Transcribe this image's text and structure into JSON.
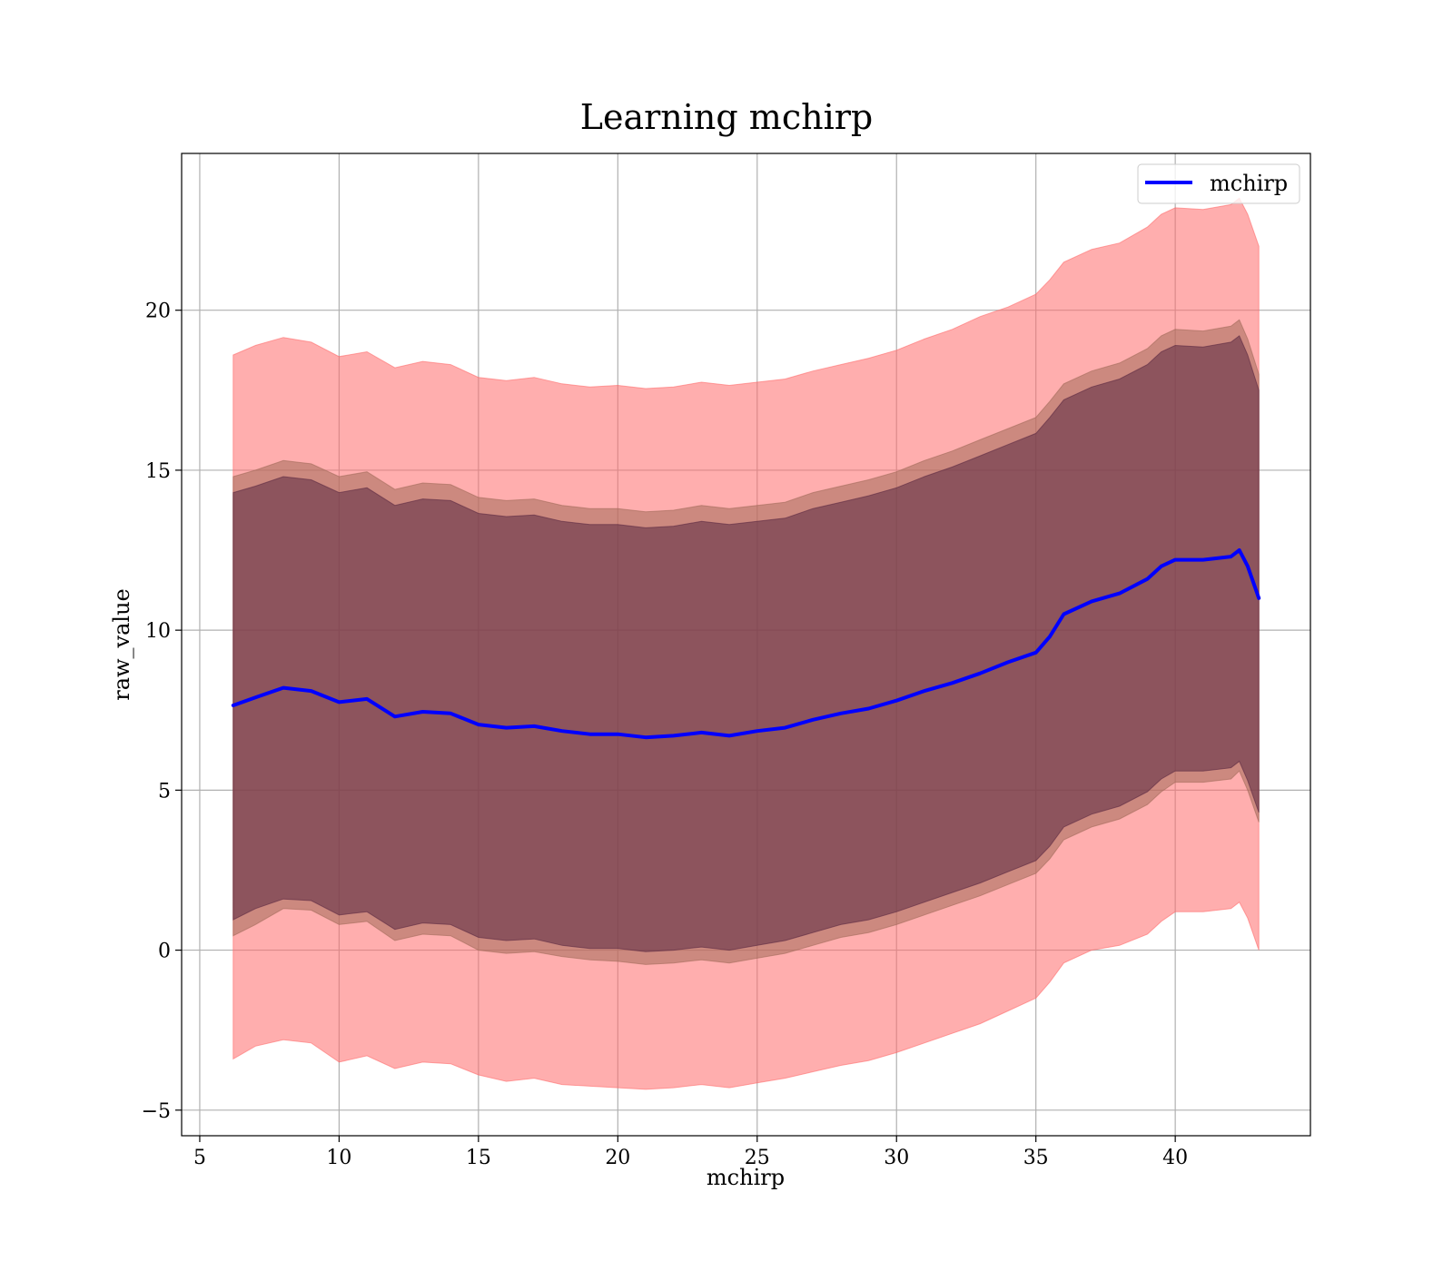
{
  "chart_data": {
    "type": "area",
    "title": "Learning mchirp",
    "xlabel": "mchirp",
    "ylabel": "raw_value",
    "xlim": [
      4.35,
      44.85
    ],
    "ylim": [
      -5.8,
      24.9
    ],
    "xticks": [
      5,
      10,
      15,
      20,
      25,
      30,
      35,
      40
    ],
    "yticks": [
      -5,
      0,
      5,
      10,
      15,
      20
    ],
    "ytick_labels": [
      "−5",
      "0",
      "5",
      "10",
      "15",
      "20"
    ],
    "grid": true,
    "legend": {
      "position": "top-right",
      "entries": [
        "mchirp"
      ]
    },
    "x": [
      6.2,
      7,
      8,
      9,
      10,
      11,
      12,
      13,
      14,
      15,
      16,
      17,
      18,
      19,
      20,
      21,
      22,
      23,
      24,
      25,
      26,
      27,
      28,
      29,
      30,
      31,
      32,
      33,
      34,
      35,
      35.5,
      36,
      37,
      38,
      39,
      39.5,
      40,
      41,
      42,
      42.3,
      42.6,
      43
    ],
    "series": [
      {
        "name": "mchirp",
        "kind": "line",
        "color": "#0000ff",
        "values": [
          7.65,
          7.9,
          8.2,
          8.1,
          7.75,
          7.85,
          7.3,
          7.45,
          7.4,
          7.05,
          6.95,
          7.0,
          6.85,
          6.75,
          6.75,
          6.65,
          6.7,
          6.8,
          6.7,
          6.85,
          6.95,
          7.2,
          7.4,
          7.55,
          7.8,
          8.1,
          8.35,
          8.65,
          9.0,
          9.3,
          9.8,
          10.5,
          10.9,
          11.15,
          11.6,
          12.0,
          12.2,
          12.2,
          12.3,
          12.5,
          12.0,
          11.0
        ]
      },
      {
        "kind": "band",
        "color": "#ff6b6b",
        "lower": [
          -3.4,
          -3.0,
          -2.8,
          -2.9,
          -3.5,
          -3.3,
          -3.7,
          -3.5,
          -3.55,
          -3.9,
          -4.1,
          -4.0,
          -4.2,
          -4.25,
          -4.3,
          -4.35,
          -4.3,
          -4.2,
          -4.3,
          -4.15,
          -4.0,
          -3.8,
          -3.6,
          -3.45,
          -3.2,
          -2.9,
          -2.6,
          -2.3,
          -1.9,
          -1.5,
          -1.0,
          -0.4,
          0.0,
          0.15,
          0.5,
          0.9,
          1.2,
          1.2,
          1.3,
          1.5,
          1.0,
          0.0
        ],
        "upper": [
          18.6,
          18.9,
          19.15,
          19.0,
          18.55,
          18.7,
          18.2,
          18.4,
          18.3,
          17.9,
          17.8,
          17.9,
          17.7,
          17.6,
          17.65,
          17.55,
          17.6,
          17.75,
          17.65,
          17.75,
          17.85,
          18.1,
          18.3,
          18.5,
          18.75,
          19.1,
          19.4,
          19.8,
          20.1,
          20.5,
          20.95,
          21.5,
          21.9,
          22.1,
          22.6,
          23.0,
          23.2,
          23.15,
          23.3,
          23.5,
          23.0,
          22.0
        ]
      },
      {
        "kind": "band",
        "color": "#a26b5a",
        "lower": [
          0.45,
          0.8,
          1.3,
          1.25,
          0.8,
          0.9,
          0.3,
          0.5,
          0.45,
          0.0,
          -0.1,
          -0.05,
          -0.2,
          -0.3,
          -0.35,
          -0.45,
          -0.4,
          -0.3,
          -0.4,
          -0.25,
          -0.1,
          0.15,
          0.4,
          0.55,
          0.8,
          1.1,
          1.4,
          1.7,
          2.05,
          2.4,
          2.85,
          3.45,
          3.85,
          4.1,
          4.55,
          4.95,
          5.25,
          5.25,
          5.35,
          5.6,
          5.0,
          4.0
        ],
        "upper": [
          14.8,
          15.0,
          15.3,
          15.2,
          14.8,
          14.95,
          14.4,
          14.6,
          14.55,
          14.15,
          14.05,
          14.1,
          13.9,
          13.8,
          13.8,
          13.7,
          13.75,
          13.9,
          13.8,
          13.9,
          14.0,
          14.3,
          14.5,
          14.7,
          14.95,
          15.3,
          15.6,
          15.95,
          16.3,
          16.65,
          17.15,
          17.7,
          18.1,
          18.35,
          18.8,
          19.2,
          19.4,
          19.35,
          19.5,
          19.7,
          19.1,
          18.0
        ]
      },
      {
        "kind": "band",
        "color": "#5a2841",
        "lower": [
          0.95,
          1.3,
          1.6,
          1.55,
          1.1,
          1.2,
          0.65,
          0.85,
          0.8,
          0.4,
          0.3,
          0.35,
          0.15,
          0.05,
          0.05,
          -0.05,
          0.0,
          0.1,
          0.0,
          0.15,
          0.3,
          0.55,
          0.8,
          0.95,
          1.2,
          1.5,
          1.8,
          2.1,
          2.45,
          2.8,
          3.25,
          3.85,
          4.25,
          4.5,
          4.95,
          5.35,
          5.6,
          5.6,
          5.7,
          5.9,
          5.3,
          4.3
        ],
        "upper": [
          14.3,
          14.5,
          14.8,
          14.7,
          14.3,
          14.45,
          13.9,
          14.1,
          14.05,
          13.65,
          13.55,
          13.6,
          13.4,
          13.3,
          13.3,
          13.2,
          13.25,
          13.4,
          13.3,
          13.4,
          13.5,
          13.8,
          14.0,
          14.2,
          14.45,
          14.8,
          15.1,
          15.45,
          15.8,
          16.15,
          16.65,
          17.2,
          17.6,
          17.85,
          18.3,
          18.7,
          18.9,
          18.85,
          19.0,
          19.2,
          18.6,
          17.5
        ]
      }
    ]
  }
}
